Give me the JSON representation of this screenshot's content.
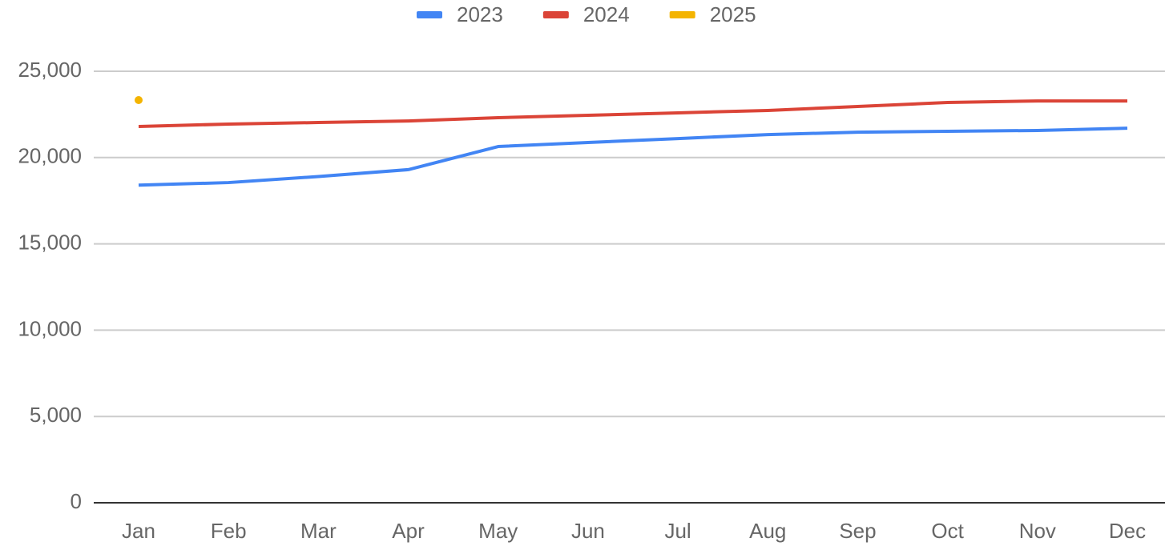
{
  "chart_data": {
    "type": "line",
    "categories": [
      "Jan",
      "Feb",
      "Mar",
      "Apr",
      "May",
      "Jun",
      "Jul",
      "Aug",
      "Sep",
      "Oct",
      "Nov",
      "Dec"
    ],
    "series": [
      {
        "name": "2023",
        "color": "#4285f4",
        "values": [
          18400,
          18550,
          18900,
          19300,
          20640,
          20870,
          21100,
          21330,
          21470,
          21520,
          21570,
          21700
        ]
      },
      {
        "name": "2024",
        "color": "#db4437",
        "values": [
          21800,
          21940,
          22030,
          22120,
          22310,
          22450,
          22590,
          22730,
          22960,
          23190,
          23280,
          23280
        ]
      },
      {
        "name": "2025",
        "color": "#f4b400",
        "values": [
          23330,
          null,
          null,
          null,
          null,
          null,
          null,
          null,
          null,
          null,
          null,
          null
        ]
      }
    ],
    "ylim": [
      0,
      25000
    ],
    "yticks": [
      0,
      {
        "value": 5000,
        "label": "5,000"
      },
      {
        "value": 10000,
        "label": "10,000"
      },
      {
        "value": 15000,
        "label": "15,000"
      },
      {
        "value": 20000,
        "label": "20,000"
      },
      {
        "value": 25000,
        "label": "25,000"
      }
    ],
    "grid": true,
    "legend": "top"
  }
}
